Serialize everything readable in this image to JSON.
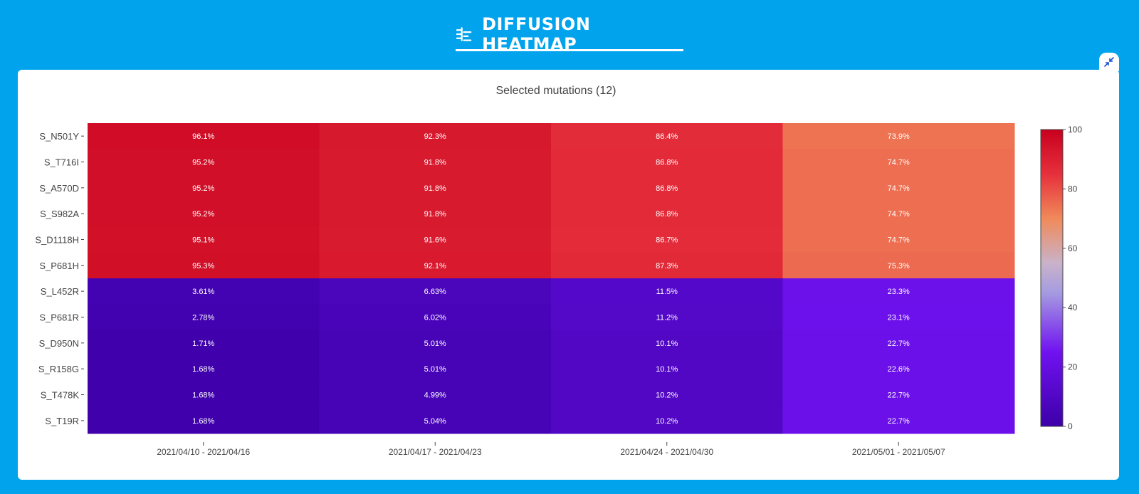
{
  "header": {
    "title": "DIFFUSION HEATMAP",
    "title_icon": "heatmap-settings-icon",
    "collapse_icon": "collapse-arrows-icon"
  },
  "colors": {
    "background": "#00a3ec",
    "card": "#ffffff",
    "scale": [
      "#3d00a8",
      "#6a10e6",
      "#a346e8",
      "#e8a070",
      "#f07850",
      "#c8001e"
    ]
  },
  "chart_data": {
    "type": "heatmap",
    "title": "Selected mutations (12)",
    "x": [
      "2021/04/10 - 2021/04/16",
      "2021/04/17 - 2021/04/23",
      "2021/04/24 - 2021/04/30",
      "2021/05/01 - 2021/05/07"
    ],
    "y": [
      "S_N501Y",
      "S_T716I",
      "S_A570D",
      "S_S982A",
      "S_D1118H",
      "S_P681H",
      "S_L452R",
      "S_P681R",
      "S_D950N",
      "S_R158G",
      "S_T478K",
      "S_T19R"
    ],
    "values": [
      [
        96.1,
        92.3,
        86.4,
        73.9
      ],
      [
        95.2,
        91.8,
        86.8,
        74.7
      ],
      [
        95.2,
        91.8,
        86.8,
        74.7
      ],
      [
        95.2,
        91.8,
        86.8,
        74.7
      ],
      [
        95.1,
        91.6,
        86.7,
        74.7
      ],
      [
        95.3,
        92.1,
        87.3,
        75.3
      ],
      [
        3.61,
        6.63,
        11.5,
        23.3
      ],
      [
        2.78,
        6.02,
        11.2,
        23.1
      ],
      [
        1.71,
        5.01,
        10.1,
        22.7
      ],
      [
        1.68,
        5.01,
        10.1,
        22.6
      ],
      [
        1.68,
        4.99,
        10.2,
        22.7
      ],
      [
        1.68,
        5.04,
        10.2,
        22.7
      ]
    ],
    "labels": [
      [
        "96.1%",
        "92.3%",
        "86.4%",
        "73.9%"
      ],
      [
        "95.2%",
        "91.8%",
        "86.8%",
        "74.7%"
      ],
      [
        "95.2%",
        "91.8%",
        "86.8%",
        "74.7%"
      ],
      [
        "95.2%",
        "91.8%",
        "86.8%",
        "74.7%"
      ],
      [
        "95.1%",
        "91.6%",
        "86.7%",
        "74.7%"
      ],
      [
        "95.3%",
        "92.1%",
        "87.3%",
        "75.3%"
      ],
      [
        "3.61%",
        "6.63%",
        "11.5%",
        "23.3%"
      ],
      [
        "2.78%",
        "6.02%",
        "11.2%",
        "23.1%"
      ],
      [
        "1.71%",
        "5.01%",
        "10.1%",
        "22.7%"
      ],
      [
        "1.68%",
        "5.01%",
        "10.1%",
        "22.6%"
      ],
      [
        "1.68%",
        "4.99%",
        "10.2%",
        "22.7%"
      ],
      [
        "1.68%",
        "5.04%",
        "10.2%",
        "22.7%"
      ]
    ],
    "colorbar": {
      "range": [
        0,
        100
      ],
      "ticks": [
        0,
        20,
        40,
        60,
        80,
        100
      ]
    }
  }
}
